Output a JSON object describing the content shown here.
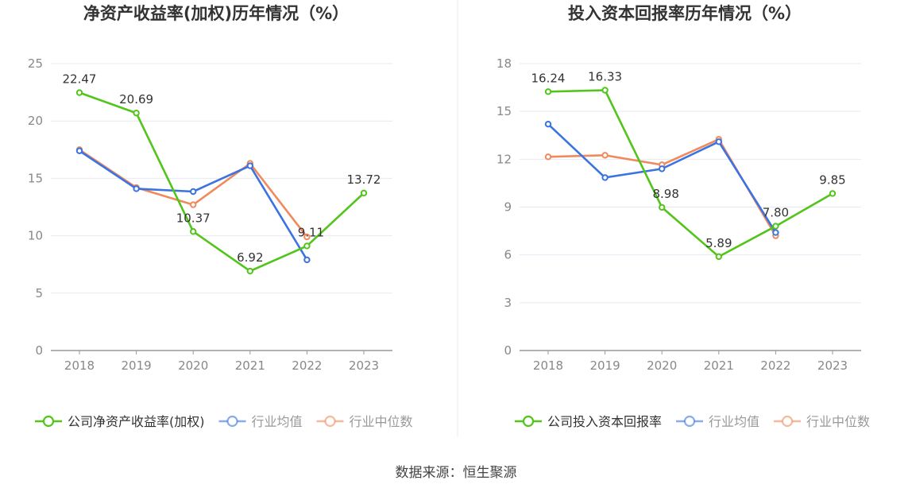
{
  "colors": {
    "company": "#52c41a",
    "industry_avg": "#3b73e0",
    "industry_median": "#f08a5d",
    "grid": "#e6e9f2",
    "axis": "#999999",
    "tick_text": "#888888",
    "title_text": "#333333",
    "label_text": "#333333",
    "divider": "#eeeeee"
  },
  "source": "数据来源：恒生聚源",
  "chart_data": [
    {
      "type": "line",
      "title": "净资产收益率(加权)历年情况（%）",
      "categories": [
        "2018",
        "2019",
        "2020",
        "2021",
        "2022",
        "2023"
      ],
      "ylim": [
        0,
        25
      ],
      "yticks": [
        0,
        5,
        10,
        15,
        20,
        25
      ],
      "grid": true,
      "legend_position": "bottom",
      "series": [
        {
          "name": "公司净资产收益率(加权)",
          "key": "company",
          "values": [
            22.47,
            20.69,
            10.37,
            6.92,
            9.11,
            13.72
          ],
          "labels": [
            "22.47",
            "20.69",
            "10.37",
            "6.92",
            "9.11",
            "13.72"
          ]
        },
        {
          "name": "行业均值",
          "key": "industry_avg",
          "values": [
            17.4,
            14.1,
            13.85,
            16.1,
            7.9,
            null
          ]
        },
        {
          "name": "行业中位数",
          "key": "industry_median",
          "values": [
            17.5,
            14.2,
            12.7,
            16.3,
            9.9,
            null
          ]
        }
      ]
    },
    {
      "type": "line",
      "title": "投入资本回报率历年情况（%）",
      "categories": [
        "2018",
        "2019",
        "2020",
        "2021",
        "2022",
        "2023"
      ],
      "ylim": [
        0,
        18
      ],
      "yticks": [
        0,
        3,
        6,
        9,
        12,
        15,
        18
      ],
      "grid": true,
      "legend_position": "bottom",
      "series": [
        {
          "name": "公司投入资本回报率",
          "key": "company",
          "values": [
            16.24,
            16.33,
            8.98,
            5.89,
            7.8,
            9.85
          ],
          "labels": [
            "16.24",
            "16.33",
            "8.98",
            "5.89",
            "7.80",
            "9.85"
          ]
        },
        {
          "name": "行业均值",
          "key": "industry_avg",
          "values": [
            14.2,
            10.85,
            11.4,
            13.1,
            7.4,
            null
          ]
        },
        {
          "name": "行业中位数",
          "key": "industry_median",
          "values": [
            12.15,
            12.25,
            11.65,
            13.25,
            7.2,
            null
          ]
        }
      ]
    }
  ]
}
